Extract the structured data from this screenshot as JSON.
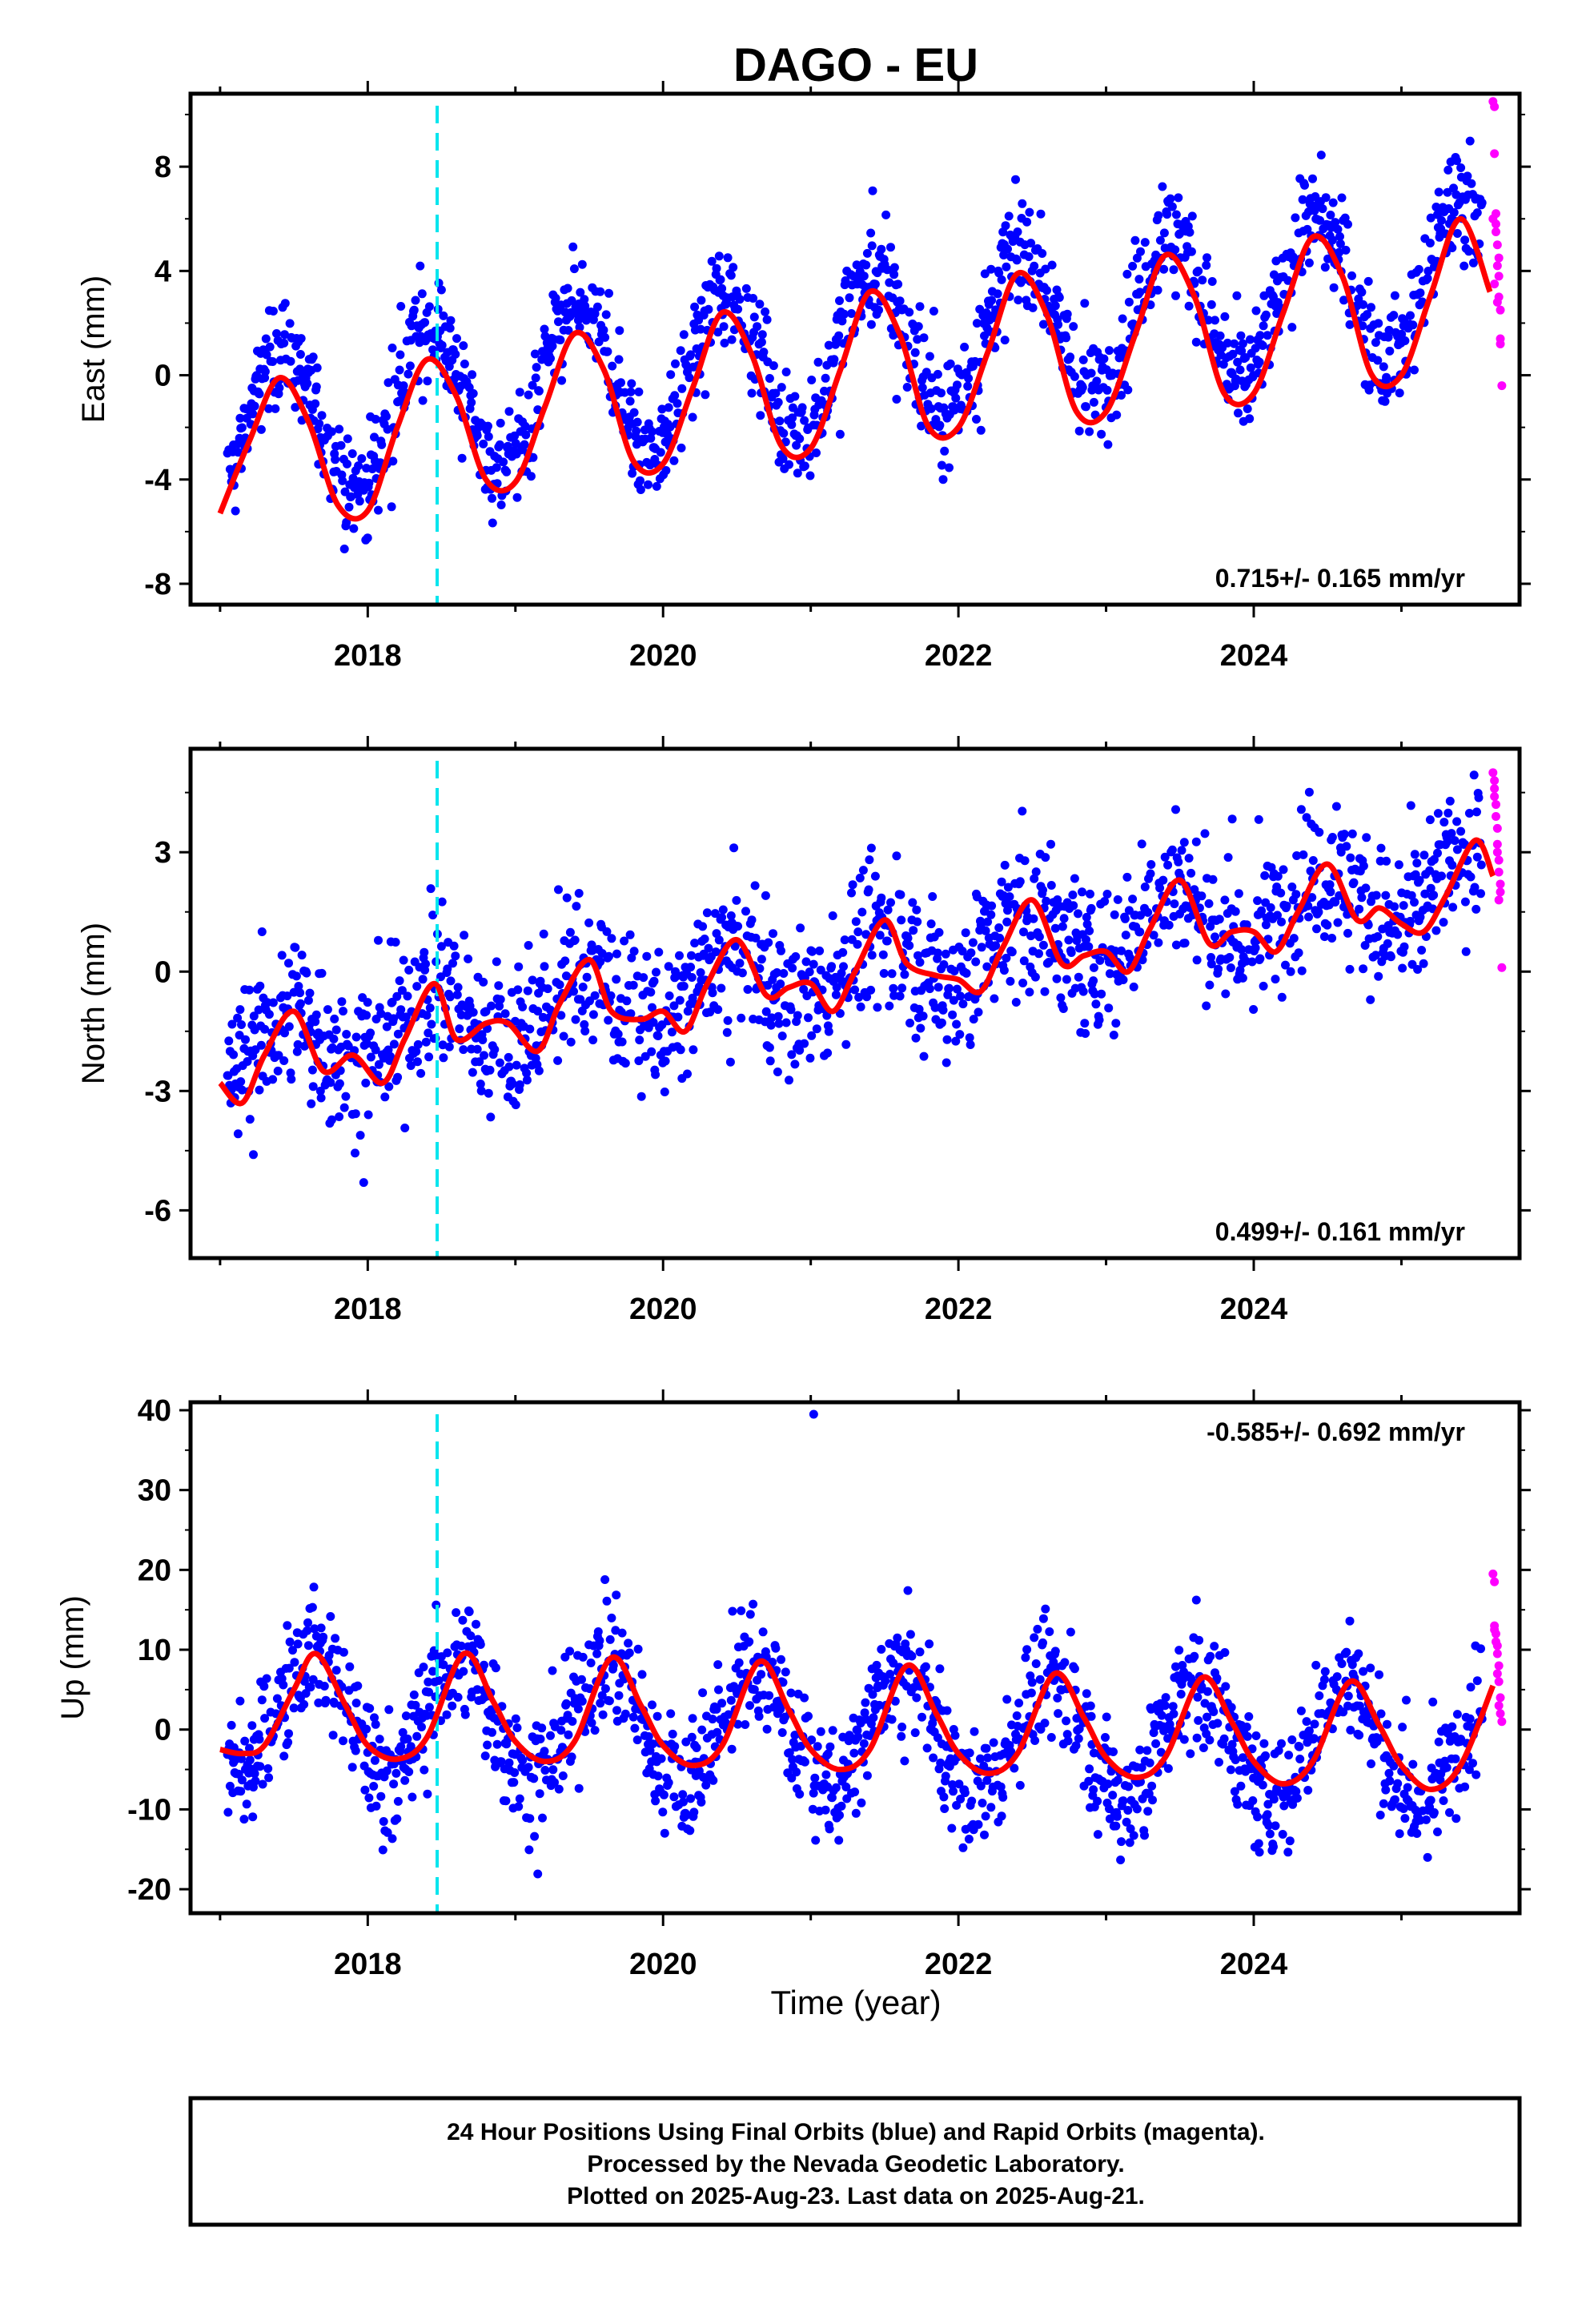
{
  "title": "DAGO - EU",
  "colors": {
    "final": "#0000ff",
    "rapid": "#ff00ff",
    "fit": "#ff0000",
    "event": "#00e5ee",
    "axis": "#000000"
  },
  "x_axis": {
    "label": "Time (year)",
    "range": [
      2016.8,
      2025.8
    ],
    "tick_labels": [
      "2018",
      "2020",
      "2022",
      "2024"
    ],
    "event_line": 2018.47
  },
  "footer": {
    "line1": "24 Hour Positions Using Final Orbits (blue) and Rapid Orbits (magenta).",
    "line2": "Processed by the Nevada Geodetic Laboratory.",
    "line3": "Plotted on 2025-Aug-23. Last data on 2025-Aug-21."
  },
  "chart_data": [
    {
      "type": "scatter",
      "component": "east",
      "ylabel": "East (mm)",
      "ylim": [
        -8.8,
        10.8
      ],
      "yticks": [
        -8,
        -4,
        0,
        4,
        8
      ],
      "rate_label": "0.715+/- 0.165 mm/yr",
      "rate_position": "bottom-right",
      "fit": {
        "x": [
          2017.0,
          2017.2,
          2017.4,
          2017.6,
          2017.8,
          2018.0,
          2018.2,
          2018.4,
          2018.6,
          2018.8,
          2019.0,
          2019.2,
          2019.4,
          2019.6,
          2019.8,
          2020.0,
          2020.2,
          2020.4,
          2020.6,
          2020.8,
          2021.0,
          2021.2,
          2021.4,
          2021.6,
          2021.8,
          2022.0,
          2022.2,
          2022.4,
          2022.6,
          2022.8,
          2023.0,
          2023.2,
          2023.4,
          2023.6,
          2023.8,
          2024.0,
          2024.2,
          2024.4,
          2024.6,
          2024.8,
          2025.0,
          2025.2,
          2025.4,
          2025.6
        ],
        "y": [
          -5.3,
          -2.5,
          -0.1,
          -1.8,
          -5.0,
          -5.2,
          -2.0,
          0.6,
          -0.8,
          -4.0,
          -4.1,
          -1.2,
          1.6,
          0.2,
          -3.3,
          -3.4,
          -0.5,
          2.4,
          0.8,
          -2.7,
          -2.8,
          0.2,
          3.2,
          1.6,
          -2.0,
          -2.0,
          0.9,
          3.9,
          2.3,
          -1.4,
          -1.4,
          1.6,
          4.6,
          3.0,
          -0.7,
          -0.7,
          2.4,
          5.3,
          3.8,
          0.0,
          0.0,
          3.1,
          6.0,
          3.2
        ]
      },
      "cloud": {
        "start": 2017.05,
        "end": 2025.55,
        "offset": -2.1,
        "slope": 0.715,
        "amp": 2.9,
        "peak": 2017.42,
        "noise": 1.0
      },
      "rapid": {
        "x": [
          2025.62,
          2025.63,
          2025.63,
          2025.64,
          2025.64,
          2025.65,
          2025.65,
          2025.66,
          2025.66,
          2025.67,
          2025.67,
          2025.68,
          2025.62,
          2025.63,
          2025.65,
          2025.66,
          2025.64,
          2025.67
        ],
        "y": [
          10.5,
          10.3,
          8.5,
          6.2,
          5.8,
          5.0,
          4.2,
          3.8,
          3.0,
          2.5,
          1.4,
          -0.4,
          6.0,
          3.5,
          2.8,
          4.5,
          5.5,
          1.2
        ]
      }
    },
    {
      "type": "scatter",
      "component": "north",
      "ylabel": "North (mm)",
      "ylim": [
        -7.2,
        5.6
      ],
      "yticks": [
        -6,
        -3,
        0,
        3
      ],
      "rate_label": "0.499+/- 0.161 mm/yr",
      "rate_position": "bottom-right",
      "fit": {
        "x": [
          2017.0,
          2017.15,
          2017.3,
          2017.5,
          2017.7,
          2017.9,
          2018.1,
          2018.25,
          2018.45,
          2018.6,
          2018.8,
          2018.95,
          2019.15,
          2019.3,
          2019.5,
          2019.65,
          2019.85,
          2020.0,
          2020.15,
          2020.3,
          2020.5,
          2020.7,
          2020.85,
          2021.0,
          2021.15,
          2021.3,
          2021.5,
          2021.65,
          2021.85,
          2022.0,
          2022.15,
          2022.3,
          2022.5,
          2022.7,
          2022.85,
          2023.0,
          2023.15,
          2023.3,
          2023.5,
          2023.7,
          2023.85,
          2024.0,
          2024.15,
          2024.3,
          2024.5,
          2024.7,
          2024.85,
          2025.0,
          2025.15,
          2025.3,
          2025.5,
          2025.62
        ],
        "y": [
          -2.8,
          -3.3,
          -2.1,
          -1.0,
          -2.5,
          -2.1,
          -2.8,
          -1.7,
          -0.3,
          -1.7,
          -1.3,
          -1.3,
          -2.0,
          -0.8,
          0.3,
          -1.0,
          -1.2,
          -1.0,
          -1.5,
          -0.3,
          0.8,
          -0.6,
          -0.4,
          -0.3,
          -1.0,
          0.0,
          1.3,
          0.2,
          -0.1,
          -0.2,
          -0.5,
          0.6,
          1.8,
          0.2,
          0.4,
          0.5,
          0.0,
          1.1,
          2.3,
          0.7,
          1.0,
          1.0,
          0.5,
          1.5,
          2.7,
          1.3,
          1.6,
          1.2,
          1.0,
          1.9,
          3.3,
          2.4
        ]
      },
      "cloud": {
        "start": 2017.05,
        "end": 2025.55,
        "offset": -2.0,
        "slope": 0.499,
        "amp": 0.8,
        "peak": 2017.45,
        "noise": 0.9
      },
      "rapid": {
        "x": [
          2025.62,
          2025.63,
          2025.63,
          2025.64,
          2025.64,
          2025.65,
          2025.65,
          2025.66,
          2025.66,
          2025.67,
          2025.67,
          2025.68,
          2025.63,
          2025.65,
          2025.66
        ],
        "y": [
          5.0,
          4.8,
          4.4,
          4.2,
          3.9,
          3.6,
          3.2,
          2.8,
          2.5,
          2.2,
          2.0,
          0.1,
          4.6,
          3.0,
          1.8
        ]
      }
    },
    {
      "type": "scatter",
      "component": "up",
      "ylabel": "Up (mm)",
      "ylim": [
        -23,
        41
      ],
      "yticks": [
        -20,
        -10,
        0,
        10,
        20,
        30,
        40
      ],
      "rate_label": "-0.585+/- 0.692 mm/yr",
      "rate_position": "top-right",
      "fit": {
        "x": [
          2017.0,
          2017.15,
          2017.3,
          2017.5,
          2017.65,
          2017.85,
          2018.0,
          2018.2,
          2018.4,
          2018.65,
          2018.85,
          2019.0,
          2019.2,
          2019.4,
          2019.65,
          2019.85,
          2020.0,
          2020.2,
          2020.4,
          2020.65,
          2020.85,
          2021.0,
          2021.2,
          2021.4,
          2021.65,
          2021.85,
          2022.0,
          2022.2,
          2022.4,
          2022.65,
          2022.85,
          2023.0,
          2023.2,
          2023.4,
          2023.65,
          2023.85,
          2024.0,
          2024.2,
          2024.4,
          2024.65,
          2024.85,
          2025.0,
          2025.2,
          2025.4,
          2025.62
        ],
        "y": [
          -2.5,
          -3.0,
          -2.0,
          5.0,
          9.5,
          3.0,
          -2.0,
          -3.7,
          -1.0,
          9.5,
          3.5,
          -1.5,
          -4.0,
          -1.5,
          9.0,
          3.0,
          -2.0,
          -4.5,
          -2.0,
          8.5,
          2.5,
          -2.5,
          -5.0,
          -2.5,
          8.0,
          2.0,
          -3.0,
          -5.5,
          -3.0,
          7.0,
          1.5,
          -3.5,
          -6.0,
          -3.5,
          6.5,
          1.0,
          -4.0,
          -6.8,
          -4.0,
          6.0,
          0.5,
          -4.5,
          -7.5,
          -4.5,
          5.5
        ]
      },
      "cloud": {
        "start": 2017.05,
        "end": 2025.55,
        "offset": 2.5,
        "slope": -0.585,
        "amp": 7.5,
        "peak": 2017.62,
        "noise": 3.6
      },
      "outliers": {
        "x": [
          2021.02
        ],
        "y": [
          39.5
        ]
      },
      "rapid": {
        "x": [
          2025.62,
          2025.63,
          2025.63,
          2025.64,
          2025.64,
          2025.65,
          2025.65,
          2025.66,
          2025.66,
          2025.67,
          2025.67,
          2025.68,
          2025.63,
          2025.65,
          2025.66
        ],
        "y": [
          19.5,
          18.5,
          13.0,
          12.0,
          11.0,
          10.5,
          9.5,
          8.0,
          6.0,
          4.0,
          2.0,
          1.0,
          12.5,
          7.0,
          3.0
        ]
      }
    }
  ]
}
